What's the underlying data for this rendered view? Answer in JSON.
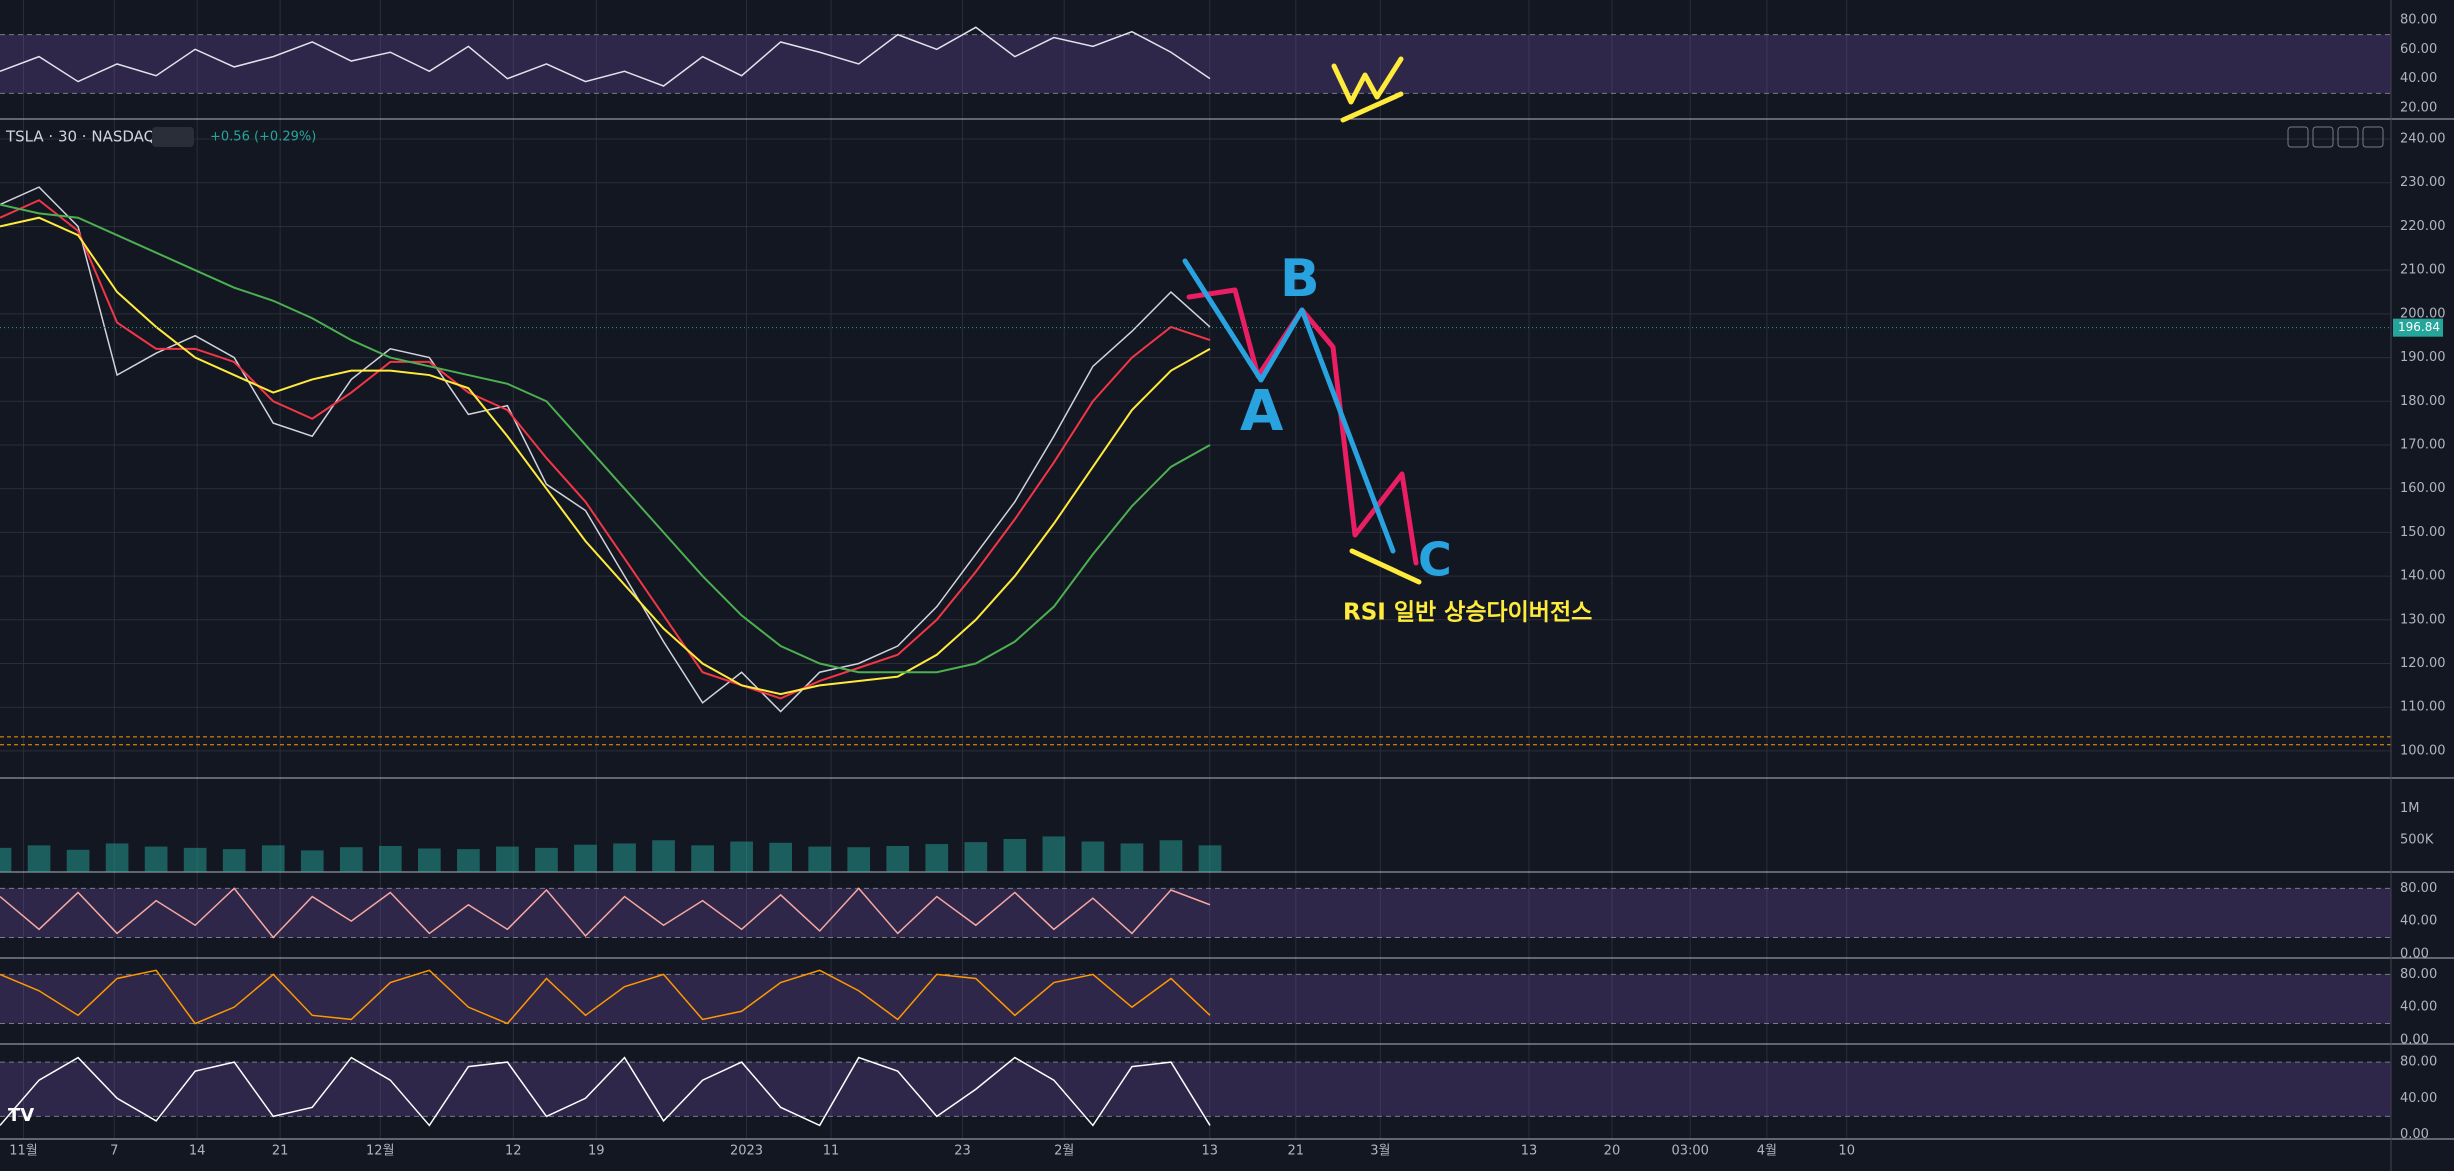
{
  "header": {
    "symbol": "TSLA · 30 · NASDAQ",
    "change": "+0.56 (+0.29%)"
  },
  "annotations": {
    "note": "RSI 일반 상승다이버전스",
    "wave_labels": [
      "A",
      "B",
      "C"
    ],
    "w": "W"
  },
  "time_axis": {
    "labels": [
      "11월",
      "7",
      "14",
      "21",
      "12월",
      "12",
      "19",
      "2023",
      "11",
      "23",
      "2월",
      "13",
      "21",
      "3월",
      "13",
      "20",
      "03:00",
      "4월",
      "10"
    ]
  },
  "chart_data": [
    {
      "type": "line",
      "ylim": [
        12.5,
        93.6
      ],
      "yticks": [
        {
          "value": 80,
          "label": "80.00"
        },
        {
          "value": 60,
          "label": "60.00"
        },
        {
          "value": 40,
          "label": "40.00"
        },
        {
          "value": 20,
          "label": "20.00"
        }
      ],
      "band": [
        30,
        70
      ],
      "series": [
        {
          "color": "#e0e3eb",
          "values": [
            45,
            55,
            38,
            50,
            42,
            60,
            48,
            55,
            65,
            52,
            58,
            45,
            62,
            40,
            50,
            38,
            45,
            35,
            55,
            42,
            65,
            58,
            50,
            70,
            60,
            75,
            55,
            68,
            62,
            72,
            58,
            40
          ]
        }
      ]
    },
    {
      "type": "line",
      "ylim": [
        93.8,
        243.9
      ],
      "yticks": [
        {
          "value": 240,
          "label": "240.00"
        },
        {
          "value": 230,
          "label": "230.00"
        },
        {
          "value": 220,
          "label": "220.00"
        },
        {
          "value": 210,
          "label": "210.00"
        },
        {
          "value": 200,
          "label": "200.00"
        },
        {
          "value": 190,
          "label": "190.00"
        },
        {
          "value": 180,
          "label": "180.00"
        },
        {
          "value": 170,
          "label": "170.00"
        },
        {
          "value": 160,
          "label": "160.00"
        },
        {
          "value": 150,
          "label": "150.00"
        },
        {
          "value": 140,
          "label": "140.00"
        },
        {
          "value": 130,
          "label": "130.00"
        },
        {
          "value": 120,
          "label": "120.00"
        },
        {
          "value": 110,
          "label": "110.00"
        },
        {
          "value": 100,
          "label": "100.00"
        }
      ],
      "hlines": [
        103.2,
        101.4
      ],
      "last_price": 196.84,
      "series": [
        {
          "color": "#d1d4dc",
          "values": [
            225,
            229,
            220,
            186,
            191,
            195,
            190,
            175,
            172,
            185,
            192,
            190,
            177,
            179,
            161,
            155,
            140,
            125,
            111,
            118,
            109,
            118,
            120,
            124,
            133,
            145,
            157,
            172,
            188,
            196,
            205,
            197
          ]
        },
        {
          "color": "#f23645",
          "values": [
            222,
            226,
            219,
            198,
            192,
            192,
            189,
            180,
            176,
            182,
            189,
            189,
            182,
            178,
            167,
            157,
            144,
            131,
            118,
            115,
            112,
            116,
            119,
            122,
            130,
            141,
            153,
            166,
            180,
            190,
            197,
            194
          ]
        },
        {
          "color": "#ffeb3b",
          "values": [
            220,
            222,
            218,
            205,
            197,
            190,
            186,
            182,
            185,
            187,
            187,
            186,
            183,
            172,
            160,
            148,
            138,
            128,
            120,
            115,
            113,
            115,
            116,
            117,
            122,
            130,
            140,
            152,
            165,
            178,
            187,
            192
          ]
        },
        {
          "color": "#4caf50",
          "values": [
            225,
            223,
            222,
            218,
            214,
            210,
            206,
            203,
            199,
            194,
            190,
            188,
            186,
            184,
            180,
            170,
            160,
            150,
            140,
            131,
            124,
            120,
            118,
            118,
            118,
            120,
            125,
            133,
            145,
            156,
            165,
            170
          ]
        }
      ]
    },
    {
      "type": "bar",
      "ylim": [
        0,
        1480000
      ],
      "yticks": [
        {
          "value": 1000000,
          "label": "1M"
        },
        {
          "value": 500000,
          "label": "500K"
        }
      ],
      "color": "#26a69a",
      "values": [
        380000,
        420000,
        350000,
        450000,
        400000,
        380000,
        360000,
        420000,
        340000,
        390000,
        410000,
        370000,
        360000,
        400000,
        380000,
        430000,
        450000,
        500000,
        420000,
        480000,
        460000,
        400000,
        390000,
        410000,
        440000,
        470000,
        520000,
        560000,
        480000,
        450000,
        500000,
        420000
      ]
    },
    {
      "type": "line",
      "ylim": [
        -5,
        100
      ],
      "yticks": [
        {
          "value": 80,
          "label": "80.00"
        },
        {
          "value": 40,
          "label": "40.00"
        },
        {
          "value": 0,
          "label": "0.00"
        }
      ],
      "band": [
        20,
        80
      ],
      "series": [
        {
          "color": "#f7a8a0",
          "values": [
            70,
            30,
            75,
            25,
            65,
            35,
            80,
            20,
            70,
            40,
            75,
            25,
            60,
            30,
            78,
            22,
            70,
            35,
            65,
            30,
            72,
            28,
            80,
            25,
            70,
            35,
            75,
            30,
            68,
            25,
            78,
            60
          ]
        }
      ]
    },
    {
      "type": "line",
      "ylim": [
        -5,
        100
      ],
      "yticks": [
        {
          "value": 80,
          "label": "80.00"
        },
        {
          "value": 40,
          "label": "40.00"
        },
        {
          "value": 0,
          "label": "0.00"
        }
      ],
      "band": [
        20,
        80
      ],
      "series": [
        {
          "color": "#ff9800",
          "values": [
            80,
            60,
            30,
            75,
            85,
            20,
            40,
            80,
            30,
            25,
            70,
            85,
            40,
            20,
            75,
            30,
            65,
            80,
            25,
            35,
            70,
            85,
            60,
            25,
            80,
            75,
            30,
            70,
            80,
            40,
            75,
            30
          ]
        }
      ]
    },
    {
      "type": "line",
      "ylim": [
        -5,
        100
      ],
      "yticks": [
        {
          "value": 80,
          "label": "80.00"
        },
        {
          "value": 40,
          "label": "40.00"
        },
        {
          "value": 0,
          "label": "0.00"
        }
      ],
      "band": [
        20,
        80
      ],
      "series": [
        {
          "color": "#ffffff",
          "values": [
            10,
            60,
            85,
            40,
            15,
            70,
            80,
            20,
            30,
            85,
            60,
            10,
            75,
            80,
            20,
            40,
            85,
            15,
            60,
            80,
            30,
            10,
            85,
            70,
            20,
            50,
            85,
            60,
            10,
            75,
            80,
            10
          ]
        }
      ]
    }
  ]
}
